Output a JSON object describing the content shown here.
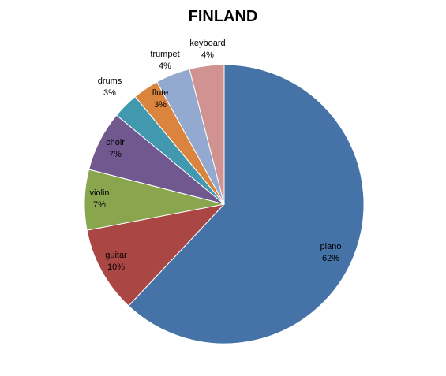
{
  "chart_data": {
    "type": "pie",
    "title": "FINLAND",
    "start_angle_deg": 0,
    "direction": "clockwise",
    "slices": [
      {
        "label": "piano",
        "value": 62,
        "value_label": "62%",
        "color": "#4572A7"
      },
      {
        "label": "guitar",
        "value": 10,
        "value_label": "10%",
        "color": "#AA4643"
      },
      {
        "label": "violin",
        "value": 7,
        "value_label": "7%",
        "color": "#89A54E"
      },
      {
        "label": "choir",
        "value": 7,
        "value_label": "7%",
        "color": "#71588F"
      },
      {
        "label": "drums",
        "value": 3,
        "value_label": "3%",
        "color": "#4198AF"
      },
      {
        "label": "flute",
        "value": 3,
        "value_label": "3%",
        "color": "#DB843D"
      },
      {
        "label": "trumpet",
        "value": 4,
        "value_label": "4%",
        "color": "#93A9CF"
      },
      {
        "label": "keyboard",
        "value": 4,
        "value_label": "4%",
        "color": "#D19392"
      }
    ]
  }
}
